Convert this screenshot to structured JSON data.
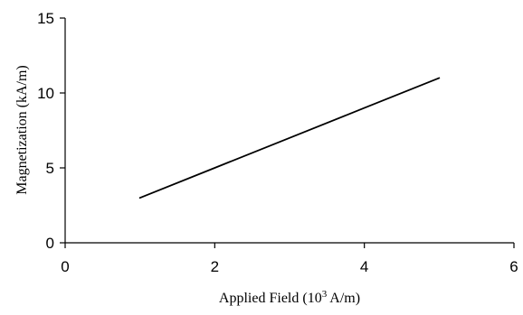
{
  "chart_data": {
    "type": "line",
    "title": "",
    "xlabel_parts": {
      "prefix": "Applied Field (10",
      "superscript": "3",
      "suffix": " A/m)"
    },
    "ylabel": "Magnetization (kA/m)",
    "xlim": [
      0,
      6
    ],
    "ylim": [
      0,
      15
    ],
    "xticks": [
      "0",
      "2",
      "4",
      "6"
    ],
    "yticks": [
      "0",
      "5",
      "10",
      "15"
    ],
    "grid": false,
    "legend": "none",
    "series": [
      {
        "x": [
          1,
          2,
          3,
          4,
          5
        ],
        "y": [
          3,
          5,
          7,
          9,
          11
        ]
      }
    ],
    "colors": {
      "axis": "#000000",
      "line": "#000000",
      "background": "#ffffff"
    }
  }
}
